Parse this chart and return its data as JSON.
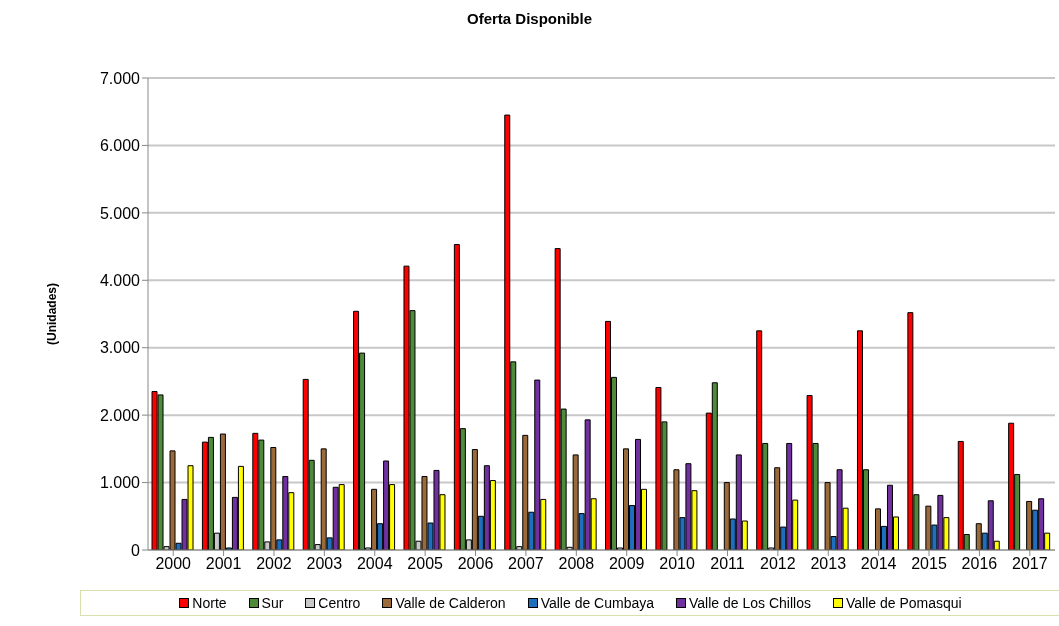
{
  "chart_data": {
    "type": "bar",
    "title": "Oferta Disponible",
    "ylabel": "(Unidades)",
    "categories": [
      "2000",
      "2001",
      "2002",
      "2003",
      "2004",
      "2005",
      "2006",
      "2007",
      "2008",
      "2009",
      "2010",
      "2011",
      "2012",
      "2013",
      "2014",
      "2015",
      "2016",
      "2017"
    ],
    "series": [
      {
        "name": "Norte",
        "color": "#ff0000",
        "values": [
          2350,
          1600,
          1730,
          2530,
          3540,
          4210,
          4530,
          6450,
          4470,
          3390,
          2410,
          2030,
          3250,
          2290,
          3250,
          3520,
          1610,
          1880
        ]
      },
      {
        "name": "Sur",
        "color": "#4f8a3a",
        "values": [
          2300,
          1670,
          1630,
          1330,
          2920,
          3550,
          1800,
          2790,
          2090,
          2560,
          1900,
          2480,
          1580,
          1580,
          1190,
          820,
          230,
          1120
        ]
      },
      {
        "name": "Centro",
        "color": "#c8c8c8",
        "values": [
          50,
          250,
          120,
          80,
          30,
          130,
          150,
          50,
          40,
          30,
          0,
          0,
          30,
          0,
          0,
          0,
          0,
          0
        ]
      },
      {
        "name": "Valle de Calderon",
        "color": "#9a6a3a",
        "values": [
          1470,
          1720,
          1520,
          1500,
          900,
          1090,
          1490,
          1700,
          1410,
          1500,
          1190,
          1000,
          1220,
          1000,
          610,
          650,
          390,
          720
        ]
      },
      {
        "name": "Valle de Cumbaya",
        "color": "#1f6fbf",
        "values": [
          100,
          30,
          150,
          180,
          390,
          400,
          500,
          560,
          540,
          660,
          480,
          460,
          340,
          200,
          350,
          370,
          250,
          590
        ]
      },
      {
        "name": "Valle de Los Chillos",
        "color": "#7030a0",
        "values": [
          750,
          780,
          1090,
          930,
          1320,
          1180,
          1250,
          2520,
          1930,
          1640,
          1280,
          1410,
          1580,
          1190,
          960,
          810,
          730,
          760
        ]
      },
      {
        "name": "Valle de Pomasqui",
        "color": "#ffff00",
        "values": [
          1250,
          1240,
          850,
          970,
          970,
          820,
          1030,
          750,
          760,
          900,
          880,
          430,
          740,
          620,
          490,
          480,
          130,
          250
        ]
      }
    ],
    "ylim": [
      0,
      7000
    ],
    "yticks": [
      0,
      {
        "value": 1000,
        "label": "1.000"
      },
      {
        "value": 2000,
        "label": "2.000"
      },
      {
        "value": 3000,
        "label": "3.000"
      },
      {
        "value": 4000,
        "label": "4.000"
      },
      {
        "value": 5000,
        "label": "5.000"
      },
      {
        "value": 6000,
        "label": "6.000"
      },
      {
        "value": 7000,
        "label": "7.000"
      }
    ],
    "grid": "y",
    "legend": "bottom"
  }
}
